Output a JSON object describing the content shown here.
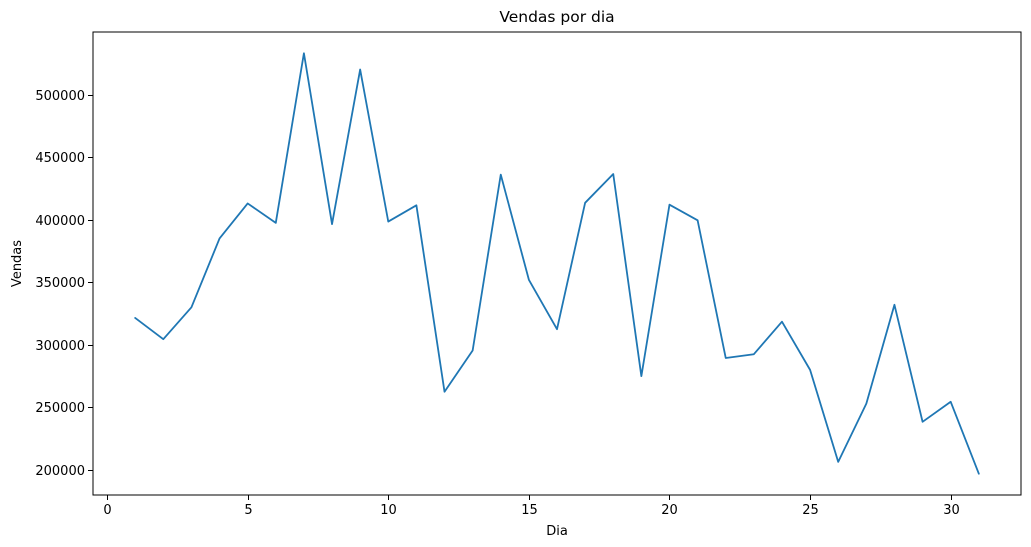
{
  "chart_data": {
    "type": "line",
    "title": "Vendas por dia",
    "xlabel": "Dia",
    "ylabel": "Vendas",
    "xlim": [
      -0.5,
      32.5
    ],
    "ylim": [
      180000,
      550000
    ],
    "xticks": [
      0,
      5,
      10,
      15,
      20,
      25,
      30
    ],
    "yticks": [
      200000,
      250000,
      300000,
      350000,
      400000,
      450000,
      500000
    ],
    "grid": false,
    "series": [
      {
        "color": "#1f77b4",
        "x": [
          1,
          2,
          3,
          4,
          5,
          6,
          7,
          8,
          9,
          10,
          11,
          12,
          13,
          14,
          15,
          16,
          17,
          18,
          19,
          20,
          21,
          22,
          23,
          24,
          25,
          26,
          27,
          28,
          29,
          30,
          31
        ],
        "y": [
          321500,
          304500,
          330000,
          385000,
          413000,
          397500,
          533000,
          396500,
          520000,
          398500,
          411500,
          262500,
          295500,
          436000,
          352000,
          312500,
          413500,
          436500,
          275000,
          412000,
          399500,
          289500,
          292500,
          318500,
          280000,
          206500,
          253000,
          332000,
          238500,
          254500,
          197000
        ]
      }
    ]
  }
}
